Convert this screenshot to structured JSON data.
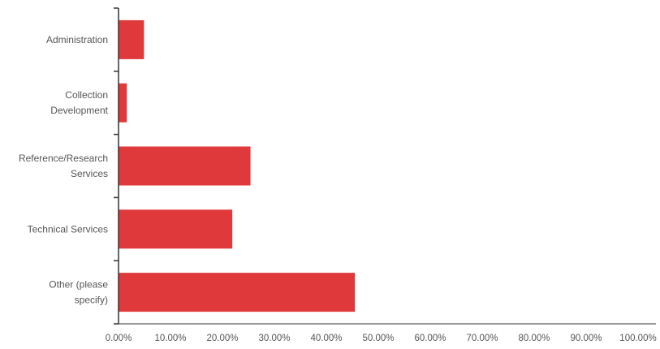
{
  "chart_data": {
    "type": "bar",
    "orientation": "horizontal",
    "categories": [
      [
        "Administration"
      ],
      [
        "Collection",
        "Development"
      ],
      [
        "Reference/Research",
        "Services"
      ],
      [
        "Technical Services"
      ],
      [
        "Other (please",
        "specify)"
      ]
    ],
    "values": [
      4.9,
      1.6,
      25.4,
      21.9,
      45.5
    ],
    "xlim": [
      0,
      100
    ],
    "x_ticks": [
      "0.00%",
      "10.00%",
      "20.00%",
      "30.00%",
      "40.00%",
      "50.00%",
      "60.00%",
      "70.00%",
      "80.00%",
      "90.00%",
      "100.00%"
    ],
    "bar_color": "#e0393b",
    "title": "",
    "xlabel": "",
    "ylabel": "",
    "grid": false,
    "legend": "none"
  }
}
